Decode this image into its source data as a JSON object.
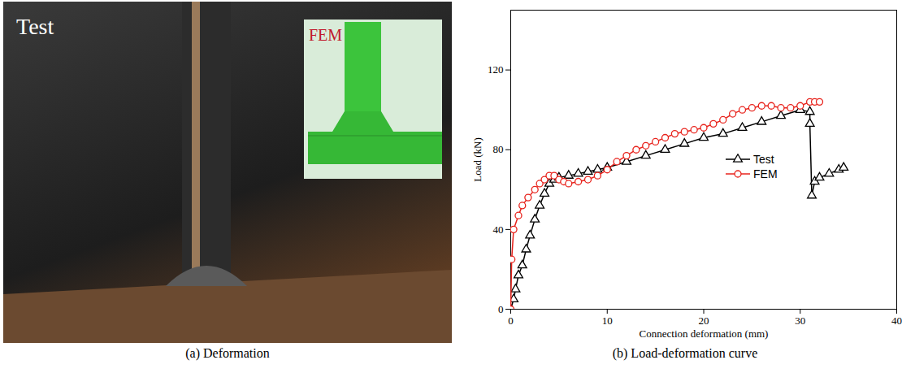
{
  "photo_panel": {
    "caption": "(a) Deformation",
    "labels": [
      "Test",
      "FEM"
    ]
  },
  "chart_data": {
    "type": "line",
    "caption": "(b) Load-deformation curve",
    "x_label": "Connection deformation (mm)",
    "y_label": "Load (kN)",
    "xlim": [
      0,
      40
    ],
    "xticks": [
      0,
      10,
      20,
      30,
      40
    ],
    "ylim": [
      0,
      150
    ],
    "yticks": [
      0,
      40,
      80,
      120
    ],
    "grid": false,
    "legend": "center-right",
    "series": [
      {
        "name": "Test",
        "color": "#000000",
        "marker": "triangle",
        "line_style": "solid",
        "x": [
          0,
          0.3,
          0.5,
          0.8,
          1.2,
          1.6,
          2,
          2.5,
          3,
          3.5,
          4,
          4.5,
          5,
          6,
          7,
          8,
          9,
          10,
          12,
          14,
          16,
          18,
          20,
          22,
          24,
          26,
          28,
          30,
          31,
          31,
          31.2,
          31.5,
          32,
          33,
          34,
          34.5
        ],
        "values": [
          0,
          5,
          10,
          17,
          22,
          30,
          37,
          45,
          52,
          58,
          63,
          65,
          66,
          67,
          68,
          69,
          70,
          71,
          74,
          77,
          80,
          83,
          86,
          88,
          91,
          94,
          97,
          100,
          99,
          93,
          57,
          64,
          66,
          68,
          70,
          71
        ]
      },
      {
        "name": "FEM",
        "color": "#e8231c",
        "marker": "circle",
        "line_style": "solid",
        "x": [
          0,
          0.1,
          0.3,
          0.8,
          1.2,
          1.8,
          2.5,
          3,
          3.5,
          4,
          4.5,
          5,
          5.5,
          6,
          7,
          8,
          9,
          10,
          11,
          12,
          13,
          14,
          15,
          16,
          17,
          18,
          19,
          20,
          21,
          22,
          23,
          24,
          25,
          26,
          27,
          28,
          29,
          30,
          31,
          31.5,
          32
        ],
        "values": [
          0,
          25,
          40,
          47,
          52,
          56,
          60,
          63,
          65,
          67,
          67,
          65,
          64,
          63,
          64,
          65,
          67,
          70,
          74,
          77,
          80,
          82,
          84,
          86,
          88,
          89,
          90,
          91,
          93,
          95,
          98,
          100,
          101,
          102,
          102,
          101,
          101,
          102,
          104,
          104,
          104
        ]
      }
    ]
  }
}
